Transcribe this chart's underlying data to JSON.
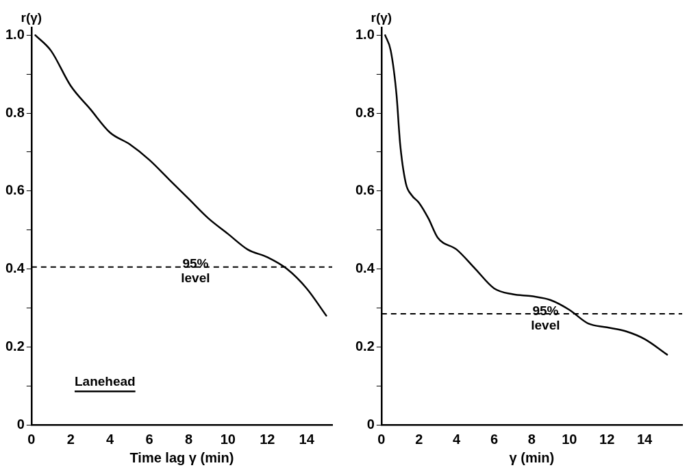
{
  "chart_data": [
    {
      "type": "line",
      "ylabel": "r(γ)",
      "xlabel": "Time lag γ (min)",
      "annotations": [
        "Lanehead"
      ],
      "xlim": [
        0,
        15.3
      ],
      "ylim": [
        0,
        1.02
      ],
      "xticks": [
        0,
        2,
        4,
        6,
        8,
        10,
        12,
        14
      ],
      "yticks": [
        0,
        {
          "value": 0.1,
          "label": null
        },
        0.2,
        {
          "value": 0.3,
          "label": null
        },
        0.4,
        {
          "value": 0.5,
          "label": null
        },
        0.6,
        {
          "value": 0.7,
          "label": null
        },
        0.8,
        {
          "value": 0.9,
          "label": null
        },
        {
          "value": 1,
          "label": "1.0"
        }
      ],
      "grid": false,
      "legend": false,
      "marker": "none",
      "line_style": "solid",
      "ref_lines": [
        {
          "axis": "y",
          "value": 0.405,
          "label": "95% level",
          "line_style": "dashed"
        }
      ],
      "series": [
        {
          "color": "#000000",
          "x": [
            0.2,
            1,
            2,
            3,
            4,
            5,
            6,
            7,
            8,
            9,
            10,
            11,
            12,
            13,
            14,
            15
          ],
          "values": [
            1.0,
            0.96,
            0.87,
            0.81,
            0.75,
            0.72,
            0.68,
            0.63,
            0.58,
            0.53,
            0.49,
            0.45,
            0.43,
            0.4,
            0.35,
            0.28
          ]
        }
      ]
    },
    {
      "type": "line",
      "ylabel": "r(γ)",
      "xlabel": "γ (min)",
      "xlim": [
        0,
        16
      ],
      "ylim": [
        0,
        1.02
      ],
      "xticks": [
        0,
        2,
        4,
        6,
        8,
        10,
        12,
        14
      ],
      "yticks": [
        0,
        {
          "value": 0.1,
          "label": null
        },
        0.2,
        {
          "value": 0.3,
          "label": null
        },
        0.4,
        {
          "value": 0.5,
          "label": null
        },
        0.6,
        {
          "value": 0.7,
          "label": null
        },
        0.8,
        {
          "value": 0.9,
          "label": null
        },
        {
          "value": 1,
          "label": "1.0"
        }
      ],
      "grid": false,
      "legend": false,
      "marker": "none",
      "line_style": "solid",
      "ref_lines": [
        {
          "axis": "y",
          "value": 0.285,
          "label": "95% level",
          "line_style": "dashed"
        }
      ],
      "series": [
        {
          "color": "#000000",
          "x": [
            0.2,
            0.5,
            0.8,
            1.0,
            1.3,
            1.6,
            2,
            2.5,
            3,
            4,
            5,
            6,
            7,
            8,
            9,
            10,
            11,
            12,
            13,
            14,
            15.2
          ],
          "values": [
            1.0,
            0.96,
            0.85,
            0.72,
            0.62,
            0.59,
            0.57,
            0.53,
            0.48,
            0.45,
            0.4,
            0.35,
            0.335,
            0.33,
            0.32,
            0.295,
            0.26,
            0.25,
            0.24,
            0.22,
            0.18
          ]
        }
      ]
    }
  ]
}
